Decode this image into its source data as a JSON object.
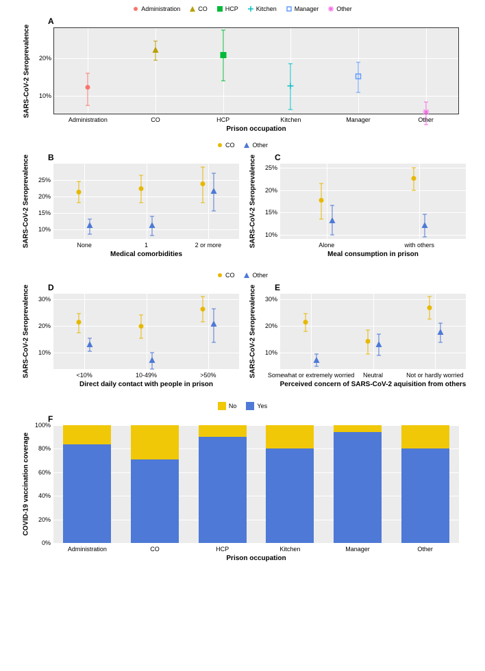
{
  "colors": {
    "admin": "#F8766D",
    "co": "#B79F00",
    "hcp": "#00BA38",
    "kitchen": "#00BFC4",
    "manager": "#619CFF",
    "other": "#F564E3",
    "co2": "#E7B800",
    "other2": "#4E79D6",
    "yes": "#4E79D6",
    "no": "#F0C808",
    "grid": "#ffffff",
    "panel_bg": "#ececec"
  },
  "panelA": {
    "label": "A",
    "ylabel": "SARS-CoV-2 Seroprevalence",
    "xlabel": "Prison occupation",
    "legend": [
      "Administration",
      "CO",
      "HCP",
      "Kitchen",
      "Manager",
      "Other"
    ],
    "legend_keys": [
      "admin",
      "co",
      "hcp",
      "kitchen",
      "manager",
      "other"
    ],
    "legend_shape": [
      "circle",
      "triangle",
      "square",
      "plus",
      "square-open",
      "asterisk"
    ],
    "ylim": [
      5,
      28
    ],
    "yticks": [
      10,
      20
    ],
    "points": [
      {
        "x": 0,
        "y": 12,
        "lo": 7.5,
        "hi": 16,
        "k": "admin",
        "shape": "circle"
      },
      {
        "x": 1,
        "y": 22,
        "lo": 19.5,
        "hi": 24.5,
        "k": "co",
        "shape": "triangle"
      },
      {
        "x": 2,
        "y": 20.5,
        "lo": 14,
        "hi": 27.5,
        "k": "hcp",
        "shape": "square"
      },
      {
        "x": 3,
        "y": 12.5,
        "lo": 6.5,
        "hi": 18.5,
        "k": "kitchen",
        "shape": "plus"
      },
      {
        "x": 4,
        "y": 15,
        "lo": 11,
        "hi": 19,
        "k": "manager",
        "shape": "square-open"
      },
      {
        "x": 5,
        "y": 5.5,
        "lo": 2.5,
        "hi": 8.5,
        "k": "other",
        "shape": "asterisk"
      }
    ]
  },
  "legend_BC_DE": {
    "items": [
      "CO",
      "Other"
    ],
    "keys": [
      "co2",
      "other2"
    ],
    "shapes": [
      "circle",
      "triangle"
    ]
  },
  "panelB": {
    "label": "B",
    "ylabel": "SARS-CoV-2 Seroprevalence",
    "xlabel": "Medical comorbidities",
    "ylim": [
      7,
      30
    ],
    "yticks": [
      10,
      15,
      20,
      25
    ],
    "cats": [
      "None",
      "1",
      "2 or more"
    ],
    "pts": [
      {
        "c": 0,
        "g": "co2",
        "y": 21,
        "lo": 18,
        "hi": 24.5,
        "s": "circle"
      },
      {
        "c": 0,
        "g": "other2",
        "y": 11,
        "lo": 8.5,
        "hi": 13,
        "s": "triangle"
      },
      {
        "c": 1,
        "g": "co2",
        "y": 22,
        "lo": 18,
        "hi": 26.5,
        "s": "circle"
      },
      {
        "c": 1,
        "g": "other2",
        "y": 11,
        "lo": 8,
        "hi": 14,
        "s": "triangle"
      },
      {
        "c": 2,
        "g": "co2",
        "y": 23.5,
        "lo": 18,
        "hi": 29,
        "s": "circle"
      },
      {
        "c": 2,
        "g": "other2",
        "y": 21.5,
        "lo": 15.5,
        "hi": 27,
        "s": "triangle"
      }
    ]
  },
  "panelC": {
    "label": "C",
    "ylabel": "SARS-CoV-2 Seroprevalence",
    "xlabel": "Meal consumption in prison",
    "ylim": [
      9,
      26
    ],
    "yticks": [
      10,
      15,
      20,
      25
    ],
    "cats": [
      "Alone",
      "with others"
    ],
    "pts": [
      {
        "c": 0,
        "g": "co2",
        "y": 17.5,
        "lo": 13.5,
        "hi": 21.5,
        "s": "circle"
      },
      {
        "c": 0,
        "g": "other2",
        "y": 13,
        "lo": 10,
        "hi": 16.5,
        "s": "triangle"
      },
      {
        "c": 1,
        "g": "co2",
        "y": 22.5,
        "lo": 20,
        "hi": 25,
        "s": "circle"
      },
      {
        "c": 1,
        "g": "other2",
        "y": 12,
        "lo": 9.5,
        "hi": 14.5,
        "s": "triangle"
      }
    ]
  },
  "panelD": {
    "label": "D",
    "ylabel": "SARS-CoV-2 Seroprevalence",
    "xlabel": "Direct daily contact with people in prison",
    "ylim": [
      4,
      32
    ],
    "yticks": [
      10,
      20,
      30
    ],
    "cats": [
      "<10%",
      "10-49%",
      ">50%"
    ],
    "pts": [
      {
        "c": 0,
        "g": "co2",
        "y": 21,
        "lo": 17.5,
        "hi": 24.5,
        "s": "circle"
      },
      {
        "c": 0,
        "g": "other2",
        "y": 13,
        "lo": 10.5,
        "hi": 15.5,
        "s": "triangle"
      },
      {
        "c": 1,
        "g": "co2",
        "y": 19.5,
        "lo": 15.5,
        "hi": 24,
        "s": "circle"
      },
      {
        "c": 1,
        "g": "other2",
        "y": 7,
        "lo": 4,
        "hi": 10,
        "s": "triangle"
      },
      {
        "c": 2,
        "g": "co2",
        "y": 26,
        "lo": 21.5,
        "hi": 31,
        "s": "circle"
      },
      {
        "c": 2,
        "g": "other2",
        "y": 20.5,
        "lo": 14,
        "hi": 26.5,
        "s": "triangle"
      }
    ]
  },
  "panelE": {
    "label": "E",
    "ylabel": "SARS-CoV-2 Seroprevalence",
    "xlabel": "Perceived concern of SARS-CoV-2 aquisition from others",
    "ylim": [
      4,
      32
    ],
    "yticks": [
      10,
      20,
      30
    ],
    "cats": [
      "Somewhat or extremely worried",
      "Neutral",
      "Not or hardly worried"
    ],
    "pts": [
      {
        "c": 0,
        "g": "co2",
        "y": 21,
        "lo": 18,
        "hi": 24.5,
        "s": "circle"
      },
      {
        "c": 0,
        "g": "other2",
        "y": 7,
        "lo": 5,
        "hi": 9.5,
        "s": "triangle"
      },
      {
        "c": 1,
        "g": "co2",
        "y": 14,
        "lo": 9.5,
        "hi": 18.5,
        "s": "circle"
      },
      {
        "c": 1,
        "g": "other2",
        "y": 13,
        "lo": 9,
        "hi": 17,
        "s": "triangle"
      },
      {
        "c": 2,
        "g": "co2",
        "y": 26.5,
        "lo": 22.5,
        "hi": 31,
        "s": "circle"
      },
      {
        "c": 2,
        "g": "other2",
        "y": 17.5,
        "lo": 14,
        "hi": 21,
        "s": "triangle"
      }
    ]
  },
  "panelF": {
    "label": "F",
    "ylabel": "COVID-19 vaccination coverage",
    "xlabel": "Prison occupation",
    "legend": [
      "No",
      "Yes"
    ],
    "legend_keys": [
      "no",
      "yes"
    ],
    "yticks": [
      0,
      20,
      40,
      60,
      80,
      100
    ],
    "cats": [
      "Administration",
      "CO",
      "HCP",
      "Kitchen",
      "Manager",
      "Other"
    ],
    "yes": [
      84,
      71,
      90,
      80,
      94,
      80
    ]
  }
}
